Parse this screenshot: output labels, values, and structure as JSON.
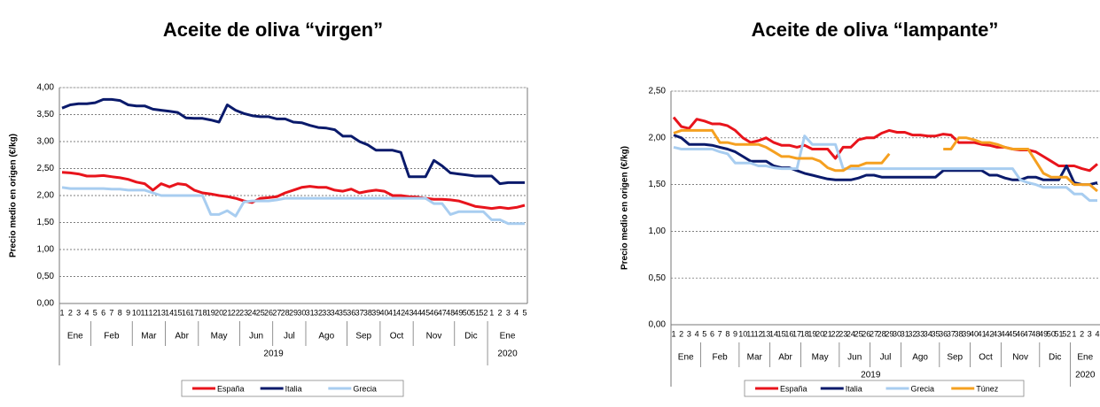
{
  "chart_data": [
    {
      "type": "line",
      "title": "Aceite de oliva “virgen”",
      "y_label": "Precio medio en origen (€/kg)",
      "categories": [
        "1",
        "2",
        "3",
        "4",
        "5",
        "6",
        "7",
        "8",
        "9",
        "10",
        "11",
        "12",
        "13",
        "14",
        "15",
        "16",
        "17",
        "18",
        "19",
        "20",
        "21",
        "22",
        "23",
        "24",
        "25",
        "26",
        "27",
        "28",
        "29",
        "30",
        "31",
        "32",
        "33",
        "34",
        "35",
        "36",
        "37",
        "38",
        "39",
        "40",
        "41",
        "42",
        "43",
        "44",
        "45",
        "46",
        "47",
        "48",
        "49",
        "50",
        "51",
        "52",
        "1",
        "2",
        "3",
        "4",
        "5"
      ],
      "months": [
        "Ene",
        "Feb",
        "Mar",
        "Abr",
        "May",
        "Jun",
        "Jul",
        "Ago",
        "Sep",
        "Oct",
        "Nov",
        "Dic",
        "Ene"
      ],
      "years": [
        "2019",
        "2020"
      ],
      "ylim": [
        0,
        4
      ],
      "yticks": [
        {
          "value": 0,
          "label": "0,00"
        },
        {
          "value": 0.5,
          "label": "0,50"
        },
        {
          "value": 1,
          "label": "1,00"
        },
        {
          "value": 1.5,
          "label": "1,50"
        },
        {
          "value": 2,
          "label": "2,00"
        },
        {
          "value": 2.5,
          "label": "2,50"
        },
        {
          "value": 3,
          "label": "3,00"
        },
        {
          "value": 3.5,
          "label": "3,50"
        },
        {
          "value": 4,
          "label": "4,00"
        }
      ],
      "grid": true,
      "series": [
        {
          "name": "España",
          "color": "#e8141c",
          "values": [
            2.43,
            2.42,
            2.4,
            2.36,
            2.36,
            2.37,
            2.35,
            2.33,
            2.3,
            2.25,
            2.22,
            2.1,
            2.22,
            2.16,
            2.22,
            2.2,
            2.1,
            2.05,
            2.03,
            2.0,
            1.98,
            1.95,
            1.9,
            1.87,
            1.95,
            1.96,
            1.98,
            2.05,
            2.1,
            2.15,
            2.17,
            2.15,
            2.15,
            2.1,
            2.08,
            2.12,
            2.05,
            2.08,
            2.1,
            2.08,
            2.0,
            2.0,
            1.98,
            1.97,
            1.95,
            1.93,
            1.93,
            1.92,
            1.9,
            1.85,
            1.8,
            1.78,
            1.76,
            1.78,
            1.76,
            1.78,
            1.82
          ]
        },
        {
          "name": "Italia",
          "color": "#0a1a6b",
          "values": [
            3.62,
            3.68,
            3.7,
            3.7,
            3.72,
            3.78,
            3.78,
            3.76,
            3.68,
            3.66,
            3.66,
            3.6,
            3.58,
            3.56,
            3.54,
            3.44,
            3.43,
            3.43,
            3.4,
            3.36,
            3.68,
            3.58,
            3.52,
            3.48,
            3.46,
            3.46,
            3.42,
            3.42,
            3.36,
            3.35,
            3.3,
            3.26,
            3.25,
            3.22,
            3.1,
            3.1,
            3.0,
            2.94,
            2.84,
            2.84,
            2.84,
            2.8,
            2.35,
            2.35,
            2.35,
            2.65,
            2.55,
            2.42,
            2.4,
            2.38,
            2.36,
            2.36,
            2.36,
            2.22,
            2.24,
            2.24,
            2.24
          ]
        },
        {
          "name": "Grecia",
          "color": "#a8cdf0",
          "values": [
            2.15,
            2.13,
            2.13,
            2.13,
            2.13,
            2.13,
            2.12,
            2.12,
            2.1,
            2.1,
            2.1,
            2.05,
            2.0,
            2.0,
            2.0,
            2.0,
            2.0,
            2.0,
            1.65,
            1.65,
            1.72,
            1.62,
            1.88,
            1.9,
            1.9,
            1.9,
            1.92,
            1.95,
            1.95,
            1.95,
            1.95,
            1.95,
            1.95,
            1.95,
            1.95,
            1.95,
            1.95,
            1.95,
            1.95,
            1.95,
            1.95,
            1.95,
            1.95,
            1.95,
            1.95,
            1.85,
            1.85,
            1.65,
            1.7,
            1.7,
            1.7,
            1.7,
            1.55,
            1.55,
            1.48,
            1.48,
            1.48
          ]
        }
      ]
    },
    {
      "type": "line",
      "title": "Aceite de oliva “lampante”",
      "y_label": "Precio medio en origen (€/kg)",
      "categories": [
        "1",
        "2",
        "3",
        "4",
        "5",
        "6",
        "7",
        "8",
        "9",
        "10",
        "11",
        "12",
        "13",
        "14",
        "15",
        "16",
        "17",
        "18",
        "19",
        "20",
        "21",
        "22",
        "23",
        "24",
        "25",
        "26",
        "27",
        "28",
        "29",
        "30",
        "31",
        "32",
        "33",
        "34",
        "35",
        "36",
        "37",
        "38",
        "39",
        "40",
        "41",
        "42",
        "43",
        "44",
        "45",
        "46",
        "47",
        "48",
        "49",
        "50",
        "51",
        "52",
        "1",
        "2",
        "3",
        "4"
      ],
      "months": [
        "Ene",
        "Feb",
        "Mar",
        "Abr",
        "May",
        "Jun",
        "Jul",
        "Ago",
        "Sep",
        "Oct",
        "Nov",
        "Dic",
        "Ene"
      ],
      "years": [
        "2019",
        "2020"
      ],
      "ylim": [
        0,
        2.5
      ],
      "yticks": [
        {
          "value": 0,
          "label": "0,00"
        },
        {
          "value": 0.5,
          "label": "0,50"
        },
        {
          "value": 1,
          "label": "1,00"
        },
        {
          "value": 1.5,
          "label": "1,50"
        },
        {
          "value": 2,
          "label": "2,00"
        },
        {
          "value": 2.5,
          "label": "2,50"
        }
      ],
      "grid": true,
      "series": [
        {
          "name": "España",
          "color": "#e8141c",
          "values": [
            2.22,
            2.12,
            2.1,
            2.2,
            2.18,
            2.15,
            2.15,
            2.13,
            2.08,
            2.0,
            1.95,
            1.97,
            2.0,
            1.95,
            1.92,
            1.92,
            1.9,
            1.92,
            1.88,
            1.88,
            1.88,
            1.78,
            1.9,
            1.9,
            1.98,
            2.0,
            2.0,
            2.05,
            2.08,
            2.06,
            2.06,
            2.03,
            2.03,
            2.02,
            2.02,
            2.04,
            2.03,
            1.95,
            1.95,
            1.95,
            1.93,
            1.92,
            1.9,
            1.9,
            1.88,
            1.87,
            1.87,
            1.85,
            1.8,
            1.75,
            1.7,
            1.7,
            1.7,
            1.67,
            1.65,
            1.72
          ]
        },
        {
          "name": "Italia",
          "color": "#0a1a6b",
          "values": [
            2.03,
            2.0,
            1.93,
            1.93,
            1.93,
            1.92,
            1.9,
            1.88,
            1.85,
            1.8,
            1.75,
            1.75,
            1.75,
            1.7,
            1.68,
            1.68,
            1.65,
            1.62,
            1.6,
            1.58,
            1.56,
            1.55,
            1.55,
            1.55,
            1.57,
            1.6,
            1.6,
            1.58,
            1.58,
            1.58,
            1.58,
            1.58,
            1.58,
            1.58,
            1.58,
            1.65,
            1.65,
            1.65,
            1.65,
            1.65,
            1.65,
            1.6,
            1.6,
            1.57,
            1.55,
            1.55,
            1.58,
            1.58,
            1.55,
            1.55,
            1.55,
            1.7,
            1.52,
            1.5,
            1.5,
            1.52
          ]
        },
        {
          "name": "Grecia",
          "color": "#a8cdf0",
          "values": [
            1.9,
            1.88,
            1.88,
            1.88,
            1.88,
            1.88,
            1.85,
            1.83,
            1.73,
            1.73,
            1.73,
            1.7,
            1.7,
            1.68,
            1.67,
            1.67,
            1.67,
            2.02,
            1.93,
            1.93,
            1.93,
            1.93,
            1.67,
            1.67,
            1.67,
            1.67,
            1.67,
            1.67,
            1.67,
            1.67,
            1.67,
            1.67,
            1.67,
            1.67,
            1.67,
            1.67,
            1.67,
            1.67,
            1.67,
            1.67,
            1.67,
            1.67,
            1.67,
            1.67,
            1.67,
            1.55,
            1.52,
            1.5,
            1.47,
            1.47,
            1.47,
            1.47,
            1.4,
            1.4,
            1.33,
            1.33
          ]
        },
        {
          "name": "Túnez",
          "color": "#f5a020",
          "values": [
            2.05,
            2.08,
            2.08,
            2.08,
            2.08,
            2.08,
            1.95,
            1.95,
            1.93,
            1.93,
            1.93,
            1.93,
            1.9,
            1.85,
            1.8,
            1.8,
            1.78,
            1.78,
            1.78,
            1.75,
            1.68,
            1.65,
            1.65,
            1.7,
            1.7,
            1.73,
            1.73,
            1.73,
            1.83,
            null,
            null,
            null,
            null,
            null,
            null,
            1.88,
            1.88,
            2.0,
            2.0,
            1.98,
            1.95,
            1.95,
            1.93,
            1.9,
            1.88,
            1.88,
            1.88,
            1.75,
            1.62,
            1.58,
            1.58,
            1.58,
            1.5,
            1.5,
            1.5,
            1.43
          ]
        }
      ]
    }
  ]
}
